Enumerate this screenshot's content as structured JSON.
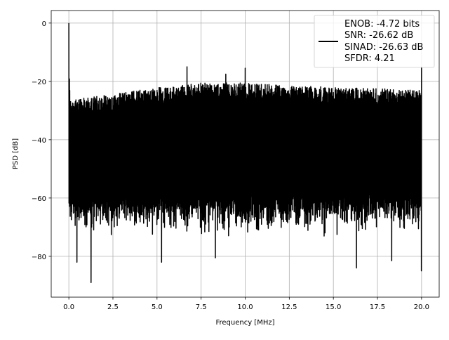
{
  "chart_data": {
    "type": "line",
    "title": "",
    "xlabel": "Frequency [MHz]",
    "ylabel": "PSD [dB]",
    "xlim": [
      -1.0,
      21.0
    ],
    "ylim": [
      -94,
      4.3
    ],
    "grid": true,
    "xticks": [
      0.0,
      2.5,
      5.0,
      7.5,
      10.0,
      12.5,
      15.0,
      17.5,
      20.0
    ],
    "xtick_labels": [
      "0.0",
      "2.5",
      "5.0",
      "7.5",
      "10.0",
      "12.5",
      "15.0",
      "17.5",
      "20.0"
    ],
    "yticks": [
      0,
      -20,
      -40,
      -60,
      -80
    ],
    "ytick_labels": [
      "0",
      "−20",
      "−40",
      "−60",
      "−80"
    ],
    "legend": {
      "placement": "top-right",
      "entries": [
        "ENOB: -4.72 bits",
        "SNR: -26.62 dB",
        "SINAD: -26.63 dB",
        "SFDR: 4.21"
      ]
    },
    "series": [
      {
        "name": "PSD",
        "color": "#000000",
        "x_range": [
          0,
          20
        ],
        "upper_envelope": {
          "x": [
            0.1,
            2.5,
            5,
            7.5,
            10,
            12.5,
            15,
            17.5,
            20
          ],
          "y": [
            -26,
            -24.5,
            -22,
            -20.5,
            -20.5,
            -21.5,
            -22,
            -22.5,
            -23
          ]
        },
        "lower_typical": -65,
        "peaks": [
          {
            "x": 0.0,
            "y": 0.0
          },
          {
            "x": 6.7,
            "y": -15
          },
          {
            "x": 8.9,
            "y": -17.5
          },
          {
            "x": 10.0,
            "y": -15.5
          },
          {
            "x": 20.0,
            "y": -15
          }
        ],
        "dips": [
          {
            "x": 0.45,
            "y": -82
          },
          {
            "x": 1.25,
            "y": -89
          },
          {
            "x": 5.25,
            "y": -82
          },
          {
            "x": 8.3,
            "y": -80.5
          },
          {
            "x": 16.3,
            "y": -84
          },
          {
            "x": 18.3,
            "y": -81.5
          },
          {
            "x": 20.0,
            "y": -85
          }
        ]
      }
    ]
  }
}
